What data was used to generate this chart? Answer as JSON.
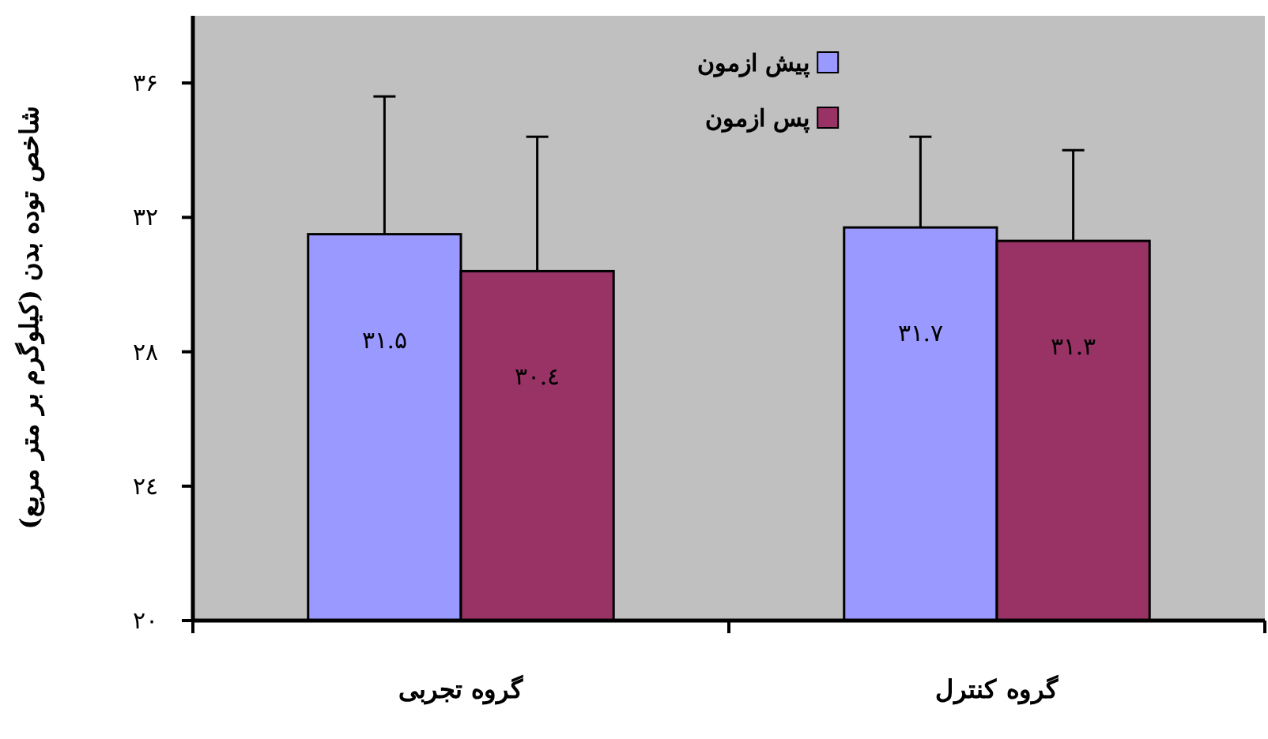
{
  "chart_data": {
    "type": "bar",
    "ylabel": "شاخص توده بدن (کیلوگرم بر متر مربع)",
    "categories": [
      "گروه تجربی",
      "گروه کنترل"
    ],
    "series": [
      {
        "name": "پیش ازمون",
        "color": "#9999ff",
        "values": [
          31.5,
          31.7
        ],
        "errors": [
          [
            31.5,
            35.6
          ],
          [
            31.7,
            34.4
          ]
        ],
        "value_labels": [
          "۳۱.۵",
          "۳۱.۷"
        ]
      },
      {
        "name": "پس ازمون",
        "color": "#993366",
        "values": [
          30.4,
          31.3
        ],
        "errors": [
          [
            30.4,
            34.4
          ],
          [
            31.3,
            34.0
          ]
        ],
        "value_labels": [
          "۳۰.٤",
          "۳۱.۳"
        ]
      }
    ],
    "ylim": [
      20,
      38
    ],
    "yticks": [
      {
        "value": 20,
        "label": "۲۰"
      },
      {
        "value": 24,
        "label": "۲٤"
      },
      {
        "value": 28,
        "label": "۲۸"
      },
      {
        "value": 32,
        "label": "۳۲"
      },
      {
        "value": 36,
        "label": "۳۶"
      }
    ],
    "grid": false,
    "legend": "top"
  }
}
